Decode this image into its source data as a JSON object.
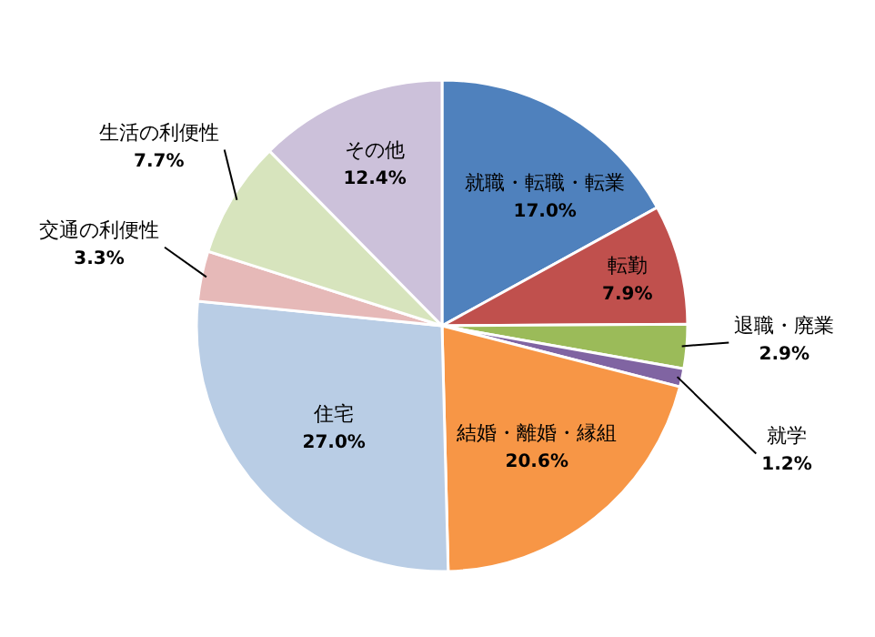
{
  "chart_data": {
    "type": "pie",
    "categories": [
      "就職・転職・転業",
      "転勤",
      "退職・廃業",
      "就学",
      "結婚・離婚・縁組",
      "住宅",
      "交通の利便性",
      "生活の利便性",
      "その他"
    ],
    "values": [
      17.0,
      7.9,
      2.9,
      1.2,
      20.6,
      27.0,
      3.3,
      7.7,
      12.4
    ],
    "value_labels": [
      "17.0%",
      "7.9%",
      "2.9%",
      "1.2%",
      "20.6%",
      "27.0%",
      "3.3%",
      "7.7%",
      "12.4%"
    ],
    "colors": [
      "#4f81bd",
      "#c0504d",
      "#9bbb59",
      "#8064a2",
      "#f79646",
      "#b9cde5",
      "#e6b9b8",
      "#d7e4bd",
      "#ccc1da"
    ]
  }
}
